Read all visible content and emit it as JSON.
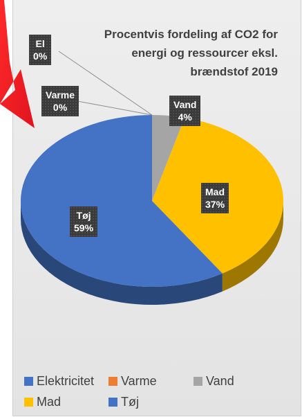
{
  "chart_data": {
    "type": "pie",
    "title": "Procentvis fordeling af CO2 for energi og ressourcer eksl. brændstof 2019",
    "title_lines": [
      "Procentvis fordeling af CO2 for",
      "energi og ressourcer eksl.",
      "brændstof 2019"
    ],
    "slices": [
      {
        "label": "El",
        "legend_label": "Elektricitet",
        "value": 0,
        "value_label": "0%",
        "color": "#4472C4"
      },
      {
        "label": "Varme",
        "legend_label": "Varme",
        "value": 0,
        "value_label": "0%",
        "color": "#ED7D31"
      },
      {
        "label": "Vand",
        "legend_label": "Vand",
        "value": 4,
        "value_label": "4%",
        "color": "#A5A5A5"
      },
      {
        "label": "Mad",
        "legend_label": "Mad",
        "value": 37,
        "value_label": "37%",
        "color": "#FFC000"
      },
      {
        "label": "Tøj",
        "legend_label": "Tøj",
        "value": 59,
        "value_label": "59%",
        "color": "#4472C4"
      }
    ],
    "legend_placement": "bottom",
    "style": "3d"
  },
  "decoration": {
    "arrow_color": "#E0141E"
  }
}
